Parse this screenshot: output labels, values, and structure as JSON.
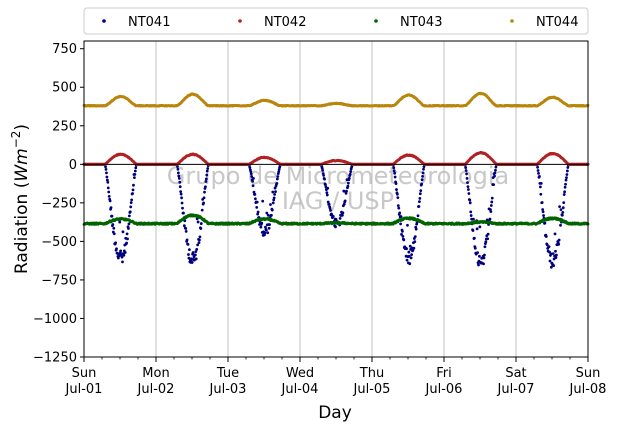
{
  "chart_data": {
    "type": "scatter",
    "xlabel": "Day",
    "ylabel_prefix": "Radiation (",
    "ylabel_unit_base": "Wm",
    "ylabel_unit_exp": "−2",
    "ylabel_suffix": ")",
    "ylim": [
      -1250,
      800
    ],
    "yticks": [
      -1250,
      -1000,
      -750,
      -500,
      -250,
      0,
      250,
      500,
      750
    ],
    "ytick_labels": [
      "−1250",
      "−1000",
      "−750",
      "−500",
      "−250",
      "0",
      "250",
      "500",
      "750"
    ],
    "xlim": [
      "2018-07-01",
      "2018-07-08"
    ],
    "xticks": [
      {
        "day": "Sun",
        "date": "Jul-01"
      },
      {
        "day": "Mon",
        "date": "Jul-02"
      },
      {
        "day": "Tue",
        "date": "Jul-03"
      },
      {
        "day": "Wed",
        "date": "Jul-04"
      },
      {
        "day": "Thu",
        "date": "Jul-05"
      },
      {
        "day": "Fri",
        "date": "Jul-06"
      },
      {
        "day": "Sat",
        "date": "Jul-07"
      },
      {
        "day": "Sun",
        "date": "Jul-08"
      }
    ],
    "grid": "vertical",
    "legend_position": "top",
    "watermark": [
      "Grupo de Micrometeorologia",
      "IAG / USP"
    ],
    "series": [
      {
        "name": "NT041",
        "color": "#00007f",
        "shape": "shortwave-net",
        "night": 0,
        "daily_min": [
          -660,
          -670,
          -470,
          -420,
          -650,
          -690,
          -680
        ]
      },
      {
        "name": "NT042",
        "color": "#b22222",
        "shape": "shortwave-reflected",
        "night": 0,
        "daily_max": [
          65,
          65,
          45,
          25,
          60,
          75,
          70
        ]
      },
      {
        "name": "NT043",
        "color": "#006400",
        "shape": "longwave-incoming",
        "night": -385,
        "daily": [
          -355,
          -330,
          -355,
          -380,
          -350,
          -375,
          -350
        ]
      },
      {
        "name": "NT044",
        "color": "#b8860b",
        "shape": "longwave-outgoing",
        "night": 380,
        "daily": [
          440,
          455,
          415,
          395,
          450,
          460,
          435
        ]
      }
    ]
  }
}
